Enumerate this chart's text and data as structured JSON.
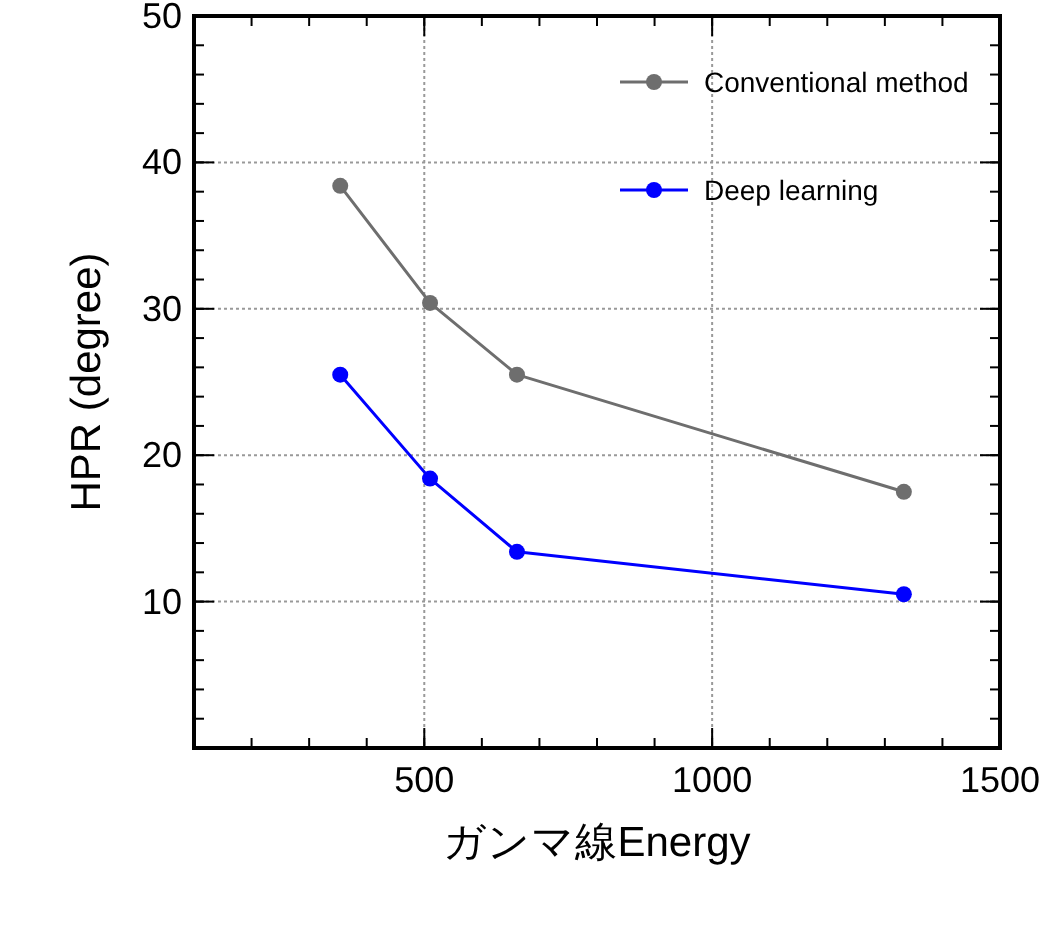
{
  "chart_data": {
    "type": "line",
    "xlabel": "ガンマ線Energy",
    "ylabel": "HPR (degree)",
    "xlim": [
      100,
      1500
    ],
    "xticks": [
      500,
      1000,
      1500
    ],
    "ylim": [
      0,
      50
    ],
    "yticks": [
      10,
      20,
      30,
      40,
      50
    ],
    "grid": true,
    "legend": "top right",
    "marker": "circle",
    "line_style": "solid",
    "series": [
      {
        "name": "Conventional method",
        "color": "#6e6e6e",
        "x": [
          354,
          510,
          661,
          1333
        ],
        "values": [
          38.4,
          30.4,
          25.5,
          17.5
        ]
      },
      {
        "name": "Deep learning",
        "color": "#0000ff",
        "x": [
          354,
          510,
          661,
          1333
        ],
        "values": [
          25.5,
          18.4,
          13.4,
          10.5
        ]
      }
    ]
  }
}
